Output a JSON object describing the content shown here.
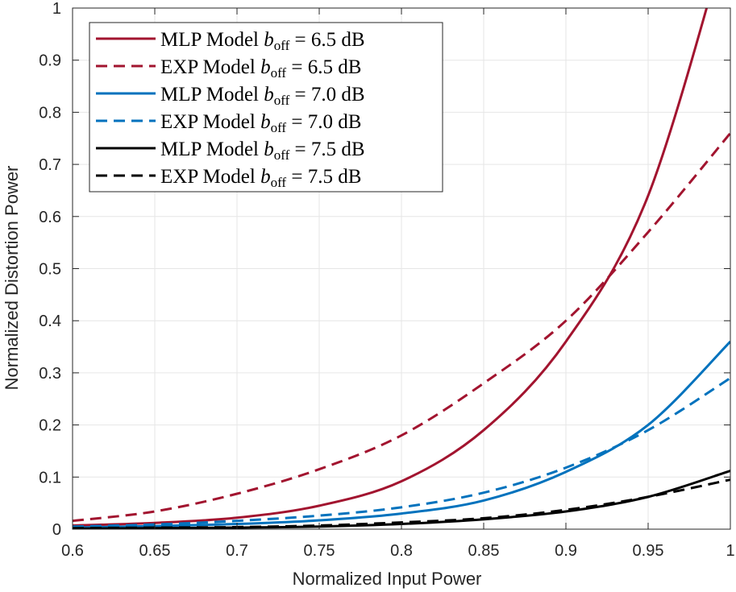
{
  "chart_data": {
    "type": "line",
    "xlabel": "Normalized Input Power",
    "ylabel": "Normalized Distortion Power",
    "xlim": [
      0.6,
      1.0
    ],
    "ylim": [
      0,
      1
    ],
    "xticks": [
      0.6,
      0.65,
      0.7,
      0.75,
      0.8,
      0.85,
      0.9,
      0.95,
      1.0
    ],
    "xtick_labels": [
      "0.6",
      "0.65",
      "0.7",
      "0.75",
      "0.8",
      "0.85",
      "0.9",
      "0.95",
      "1"
    ],
    "yticks": [
      0,
      0.1,
      0.2,
      0.3,
      0.4,
      0.5,
      0.6,
      0.7,
      0.8,
      0.9,
      1.0
    ],
    "ytick_labels": [
      "0",
      "0.1",
      "0.2",
      "0.3",
      "0.4",
      "0.5",
      "0.6",
      "0.7",
      "0.8",
      "0.9",
      "1"
    ],
    "grid": true,
    "legend_position": "top-left",
    "x": [
      0.6,
      0.65,
      0.7,
      0.75,
      0.8,
      0.85,
      0.9,
      0.95,
      1.0
    ],
    "series": [
      {
        "name": "MLP Model",
        "boff": "6.5",
        "color": "#A2142F",
        "dash": false,
        "values": [
          0.007,
          0.012,
          0.022,
          0.045,
          0.092,
          0.19,
          0.36,
          0.64,
          1.16
        ]
      },
      {
        "name": "EXP Model",
        "boff": "6.5",
        "color": "#A2142F",
        "dash": true,
        "values": [
          0.016,
          0.034,
          0.068,
          0.115,
          0.18,
          0.28,
          0.4,
          0.57,
          0.76
        ]
      },
      {
        "name": "MLP Model",
        "boff": "7.0",
        "color": "#0072BD",
        "dash": false,
        "values": [
          0.003,
          0.006,
          0.01,
          0.017,
          0.03,
          0.055,
          0.11,
          0.2,
          0.36
        ]
      },
      {
        "name": "EXP Model",
        "boff": "7.0",
        "color": "#0072BD",
        "dash": true,
        "values": [
          0.005,
          0.009,
          0.016,
          0.026,
          0.042,
          0.07,
          0.118,
          0.19,
          0.29
        ]
      },
      {
        "name": "MLP Model",
        "boff": "7.5",
        "color": "#000000",
        "dash": false,
        "values": [
          0.001,
          0.002,
          0.003,
          0.005,
          0.01,
          0.019,
          0.034,
          0.062,
          0.112
        ]
      },
      {
        "name": "EXP Model",
        "boff": "7.5",
        "color": "#000000",
        "dash": true,
        "values": [
          0.002,
          0.003,
          0.004,
          0.007,
          0.013,
          0.021,
          0.037,
          0.062,
          0.095
        ]
      }
    ],
    "legend_entries": [
      {
        "model": "MLP Model",
        "symbol_base": "b",
        "symbol_sub": "off",
        "relation": "=",
        "value": "6.5",
        "unit": "dB"
      },
      {
        "model": "EXP Model",
        "symbol_base": "b",
        "symbol_sub": "off",
        "relation": "=",
        "value": "6.5",
        "unit": "dB"
      },
      {
        "model": "MLP Model",
        "symbol_base": "b",
        "symbol_sub": "off",
        "relation": "=",
        "value": "7.0",
        "unit": "dB"
      },
      {
        "model": "EXP Model",
        "symbol_base": "b",
        "symbol_sub": "off",
        "relation": "=",
        "value": "7.0",
        "unit": "dB"
      },
      {
        "model": "MLP Model",
        "symbol_base": "b",
        "symbol_sub": "off",
        "relation": "=",
        "value": "7.5",
        "unit": "dB"
      },
      {
        "model": "EXP Model",
        "symbol_base": "b",
        "symbol_sub": "off",
        "relation": "=",
        "value": "7.5",
        "unit": "dB"
      }
    ]
  }
}
